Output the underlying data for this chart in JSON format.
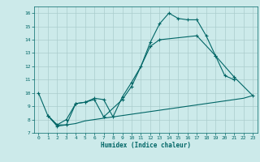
{
  "bg_color": "#cceaea",
  "grid_color_major": "#aacccc",
  "grid_color_minor": "#bbd8d8",
  "line_color": "#006666",
  "xlabel": "Humidex (Indice chaleur)",
  "xlim": [
    -0.5,
    23.5
  ],
  "ylim": [
    7,
    16.5
  ],
  "xticks": [
    0,
    1,
    2,
    3,
    4,
    5,
    6,
    7,
    8,
    9,
    10,
    11,
    12,
    13,
    14,
    15,
    16,
    17,
    18,
    19,
    20,
    21,
    22,
    23
  ],
  "yticks": [
    7,
    8,
    9,
    10,
    11,
    12,
    13,
    14,
    15,
    16
  ],
  "line1_x": [
    0,
    1,
    2,
    3,
    4,
    5,
    6,
    7,
    8,
    9,
    10,
    11,
    12,
    13,
    14,
    15,
    16,
    17,
    18,
    19,
    20,
    21
  ],
  "line1_y": [
    10.0,
    8.3,
    7.5,
    7.6,
    9.2,
    9.3,
    9.6,
    9.5,
    8.2,
    9.7,
    10.8,
    12.0,
    13.8,
    15.2,
    16.0,
    15.6,
    15.5,
    15.5,
    14.3,
    12.8,
    11.3,
    11.0
  ],
  "line2_x": [
    1,
    2,
    3,
    4,
    5,
    6,
    7,
    9,
    10,
    12,
    13,
    17,
    19,
    21,
    23
  ],
  "line2_y": [
    8.3,
    7.6,
    8.0,
    9.2,
    9.3,
    9.5,
    8.2,
    9.5,
    10.5,
    13.5,
    14.0,
    14.3,
    12.8,
    11.2,
    9.8
  ],
  "line3_x": [
    1,
    2,
    3,
    4,
    5,
    6,
    7,
    8,
    9,
    10,
    11,
    12,
    13,
    14,
    15,
    16,
    17,
    18,
    19,
    20,
    21,
    22,
    23
  ],
  "line3_y": [
    8.3,
    7.6,
    7.6,
    7.7,
    7.9,
    8.0,
    8.1,
    8.2,
    8.3,
    8.4,
    8.5,
    8.6,
    8.7,
    8.8,
    8.9,
    9.0,
    9.1,
    9.2,
    9.3,
    9.4,
    9.5,
    9.6,
    9.8
  ]
}
